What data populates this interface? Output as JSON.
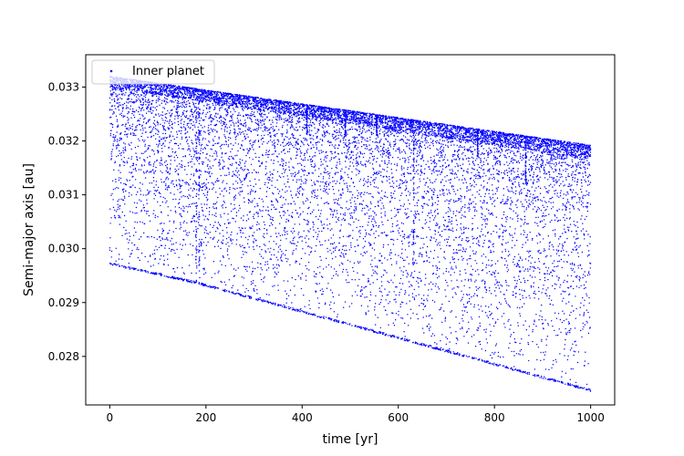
{
  "chart_data": {
    "type": "scatter",
    "title": "",
    "xlabel": "time [yr]",
    "ylabel": "Semi-major axis [au]",
    "xlim": [
      -50,
      1050
    ],
    "ylim": [
      0.0271,
      0.0336
    ],
    "xticks": [
      0,
      200,
      400,
      600,
      800,
      1000
    ],
    "yticks": [
      0.028,
      0.029,
      0.03,
      0.031,
      0.032,
      0.033
    ],
    "ytick_labels": [
      "0.028",
      "0.029",
      "0.030",
      "0.031",
      "0.032",
      "0.033"
    ],
    "grid": false,
    "legend": {
      "position": "top-left",
      "entries": [
        "Inner planet"
      ]
    },
    "series": [
      {
        "name": "Inner planet",
        "color": "#0000ff",
        "marker": "dot",
        "t_range": [
          0,
          1000
        ],
        "upper_envelope": {
          "x": [
            0,
            1000
          ],
          "y": [
            0.0332,
            0.03192
          ]
        },
        "lower_envelope": {
          "x": [
            0,
            180,
            1000
          ],
          "y": [
            0.0297,
            0.02935,
            0.02735
          ]
        },
        "dense_near_upper": true,
        "approx_points": 9000,
        "dips": [
          {
            "x": 180,
            "y_min": 0.0294
          },
          {
            "x": 186,
            "y_min": 0.0296
          },
          {
            "x": 765,
            "y_min": 0.0317
          },
          {
            "x": 632,
            "y_min": 0.0297
          },
          {
            "x": 410,
            "y_min": 0.0321
          },
          {
            "x": 490,
            "y_min": 0.0321
          },
          {
            "x": 555,
            "y_min": 0.0321
          },
          {
            "x": 865,
            "y_min": 0.0312
          }
        ]
      }
    ]
  }
}
